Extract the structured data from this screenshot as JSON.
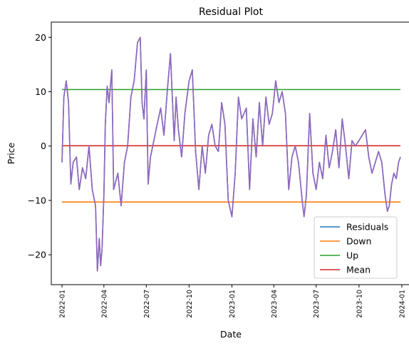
{
  "chart_data": {
    "type": "line",
    "title": "Residual Plot",
    "xlabel": "Date",
    "ylabel": "Price",
    "xlim": [
      "2021-12-09",
      "2024-01-21"
    ],
    "ylim": [
      -25.5,
      22.8
    ],
    "x_ticks": [
      "2022-01",
      "2022-04",
      "2022-07",
      "2022-10",
      "2023-01",
      "2023-04",
      "2023-07",
      "2023-10",
      "2024-01"
    ],
    "y_ticks": [
      "−20",
      "−10",
      "0",
      "10",
      "20"
    ],
    "y_tick_values": [
      -20,
      -10,
      0,
      10,
      20
    ],
    "grid": false,
    "legend_position": "lower-right",
    "series": [
      {
        "name": "Residuals",
        "color": "#1f77b4",
        "x": [
          "2022-01-01",
          "2022-01-05",
          "2022-01-10",
          "2022-01-15",
          "2022-01-20",
          "2022-01-25",
          "2022-02-01",
          "2022-02-07",
          "2022-02-14",
          "2022-02-21",
          "2022-02-28",
          "2022-03-07",
          "2022-03-14",
          "2022-03-18",
          "2022-03-22",
          "2022-03-25",
          "2022-03-28",
          "2022-04-01",
          "2022-04-04",
          "2022-04-08",
          "2022-04-12",
          "2022-04-18",
          "2022-04-22",
          "2022-05-01",
          "2022-05-08",
          "2022-05-15",
          "2022-05-22",
          "2022-05-29",
          "2022-06-05",
          "2022-06-12",
          "2022-06-18",
          "2022-06-22",
          "2022-06-26",
          "2022-07-01",
          "2022-07-05",
          "2022-07-10",
          "2022-07-15",
          "2022-07-22",
          "2022-08-01",
          "2022-08-08",
          "2022-08-15",
          "2022-08-22",
          "2022-08-30",
          "2022-09-03",
          "2022-09-08",
          "2022-09-15",
          "2022-09-22",
          "2022-10-01",
          "2022-10-08",
          "2022-10-15",
          "2022-10-22",
          "2022-10-29",
          "2022-11-05",
          "2022-11-12",
          "2022-11-19",
          "2022-11-26",
          "2022-12-03",
          "2022-12-10",
          "2022-12-17",
          "2022-12-24",
          "2023-01-01",
          "2023-01-08",
          "2023-01-15",
          "2023-01-22",
          "2023-02-01",
          "2023-02-08",
          "2023-02-15",
          "2023-02-22",
          "2023-03-01",
          "2023-03-08",
          "2023-03-15",
          "2023-03-22",
          "2023-03-29",
          "2023-04-05",
          "2023-04-12",
          "2023-04-19",
          "2023-04-26",
          "2023-05-03",
          "2023-05-10",
          "2023-05-17",
          "2023-05-24",
          "2023-06-01",
          "2023-06-05",
          "2023-06-10",
          "2023-06-17",
          "2023-06-24",
          "2023-07-01",
          "2023-07-08",
          "2023-07-15",
          "2023-07-22",
          "2023-07-29",
          "2023-08-05",
          "2023-08-12",
          "2023-08-19",
          "2023-08-26",
          "2023-09-02",
          "2023-09-09",
          "2023-09-16",
          "2023-09-23",
          "2023-10-01",
          "2023-10-08",
          "2023-10-15",
          "2023-10-22",
          "2023-10-29",
          "2023-11-05",
          "2023-11-12",
          "2023-11-19",
          "2023-11-26",
          "2023-12-01",
          "2023-12-05",
          "2023-12-10",
          "2023-12-15",
          "2023-12-20",
          "2023-12-25",
          "2023-12-29"
        ],
        "y": [
          -3,
          9,
          12,
          8,
          -7,
          -3,
          -2,
          -8,
          -4,
          -6,
          0,
          -8,
          -11,
          -23,
          -17,
          -22,
          -19,
          -9,
          4,
          11,
          8,
          14,
          -8,
          -5,
          -11,
          -3,
          0,
          9,
          12,
          19,
          20,
          8,
          5,
          14,
          -7,
          -2,
          0,
          3,
          7,
          2,
          10,
          17,
          1,
          9,
          3,
          -2,
          6,
          12,
          14,
          -1,
          -8,
          0,
          -5,
          2,
          4,
          0,
          -1,
          8,
          4,
          -10,
          -13,
          -5,
          9,
          5,
          7,
          -8,
          5,
          -2,
          8,
          0,
          9,
          4,
          6,
          12,
          8,
          10,
          6,
          -8,
          -2,
          0,
          -3,
          -10,
          -13,
          -9,
          6,
          -5,
          -8,
          -3,
          -6,
          2,
          -4,
          -1,
          3,
          -4,
          5,
          0,
          -6,
          1,
          0,
          1,
          2,
          3,
          -2,
          -5,
          -3,
          -1,
          -3,
          -9,
          -12,
          -11,
          -7,
          -5,
          -6,
          -3,
          -2
        ]
      },
      {
        "name": "Down",
        "color": "#ff7f0e",
        "x": [
          "2022-01-01",
          "2023-12-29"
        ],
        "y": [
          -10.3,
          -10.3
        ]
      },
      {
        "name": "Up",
        "color": "#2ca02c",
        "x": [
          "2022-01-01",
          "2023-12-29"
        ],
        "y": [
          10.4,
          10.4
        ]
      },
      {
        "name": "Mean",
        "color": "#d62728",
        "x": [
          "2022-01-01",
          "2023-12-29"
        ],
        "y": [
          0.05,
          0.05
        ]
      }
    ],
    "overlay_line_color": "#9467bd"
  }
}
